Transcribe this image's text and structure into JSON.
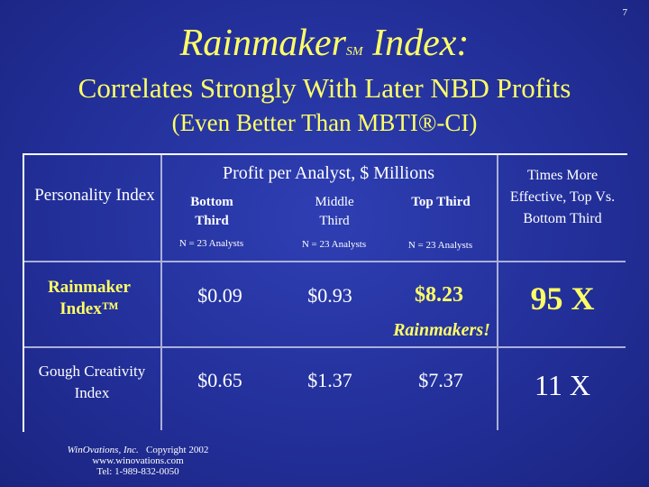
{
  "page_number": "7",
  "title_main": "Rainmaker",
  "title_sm": "SM",
  "title_rest": " Index:",
  "subtitle": "Correlates Strongly With Later NBD Profits",
  "subtitle2": "(Even Better Than MBTI®-CI)",
  "table": {
    "header_index": "Personality Index",
    "header_profit": "Profit per Analyst, $ Millions",
    "header_times": "Times More Effective, Top Vs. Bottom Third",
    "col_bottom": "Bottom Third",
    "col_middle": "Middle Third",
    "col_top": "Top Third",
    "n_bottom": "N = 23 Analysts",
    "n_middle": "N = 23 Analysts",
    "n_top": "N = 23 Analysts",
    "rows": [
      {
        "label": "Rainmaker Index™",
        "bottom": "$0.09",
        "middle": "$0.93",
        "top": "$8.23",
        "times": "95 X",
        "note": "Rainmakers!"
      },
      {
        "label": "Gough Creativity Index",
        "bottom": "$0.65",
        "middle": "$1.37",
        "top": "$7.37",
        "times": "11 X"
      }
    ]
  },
  "footer": {
    "company": "WinOvations, Inc.",
    "copyright": "Copyright 2002",
    "website": "www.winovations.com",
    "phone": "Tel:  1-989-832-0050"
  },
  "colors": {
    "title": "#ffff66",
    "background": "#23309a",
    "text": "#ffffff"
  }
}
